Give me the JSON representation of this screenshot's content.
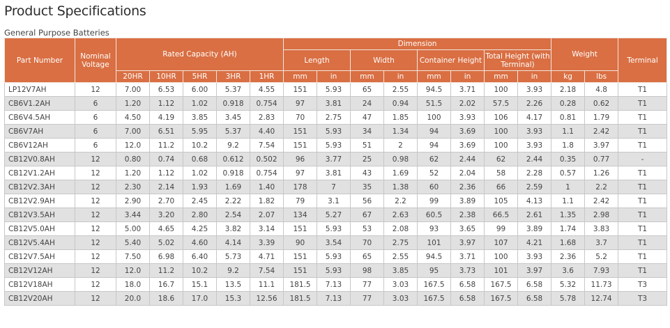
{
  "title": "Product Specifications",
  "subtitle": "General Purpose Batteries",
  "headers": {
    "part_number": "Part Number",
    "nominal_voltage": "Nominal Voltage",
    "rated_capacity": "Rated Capacity (AH)",
    "dimension": "Dimension",
    "weight": "Weight",
    "terminal": "Terminal",
    "length": "Length",
    "width": "Width",
    "container_height": "Container Height",
    "total_height": "Total Height (with Terminal)",
    "rates": [
      "20HR",
      "10HR",
      "5HR",
      "3HR",
      "1HR"
    ],
    "units": [
      "mm",
      "in",
      "mm",
      "in",
      "mm",
      "in",
      "mm",
      "in",
      "kg",
      "lbs"
    ]
  },
  "rows": [
    [
      "LP12V7AH",
      "12",
      "7.00",
      "6.53",
      "6.00",
      "5.37",
      "4.55",
      "151",
      "5.93",
      "65",
      "2.55",
      "94.5",
      "3.71",
      "100",
      "3.93",
      "2.18",
      "4.8",
      "T1"
    ],
    [
      "CB6V1.2AH",
      "6",
      "1.20",
      "1.12",
      "1.02",
      "0.918",
      "0.754",
      "97",
      "3.81",
      "24",
      "0.94",
      "51.5",
      "2.02",
      "57.5",
      "2.26",
      "0.28",
      "0.62",
      "T1"
    ],
    [
      "CB6V4.5AH",
      "6",
      "4.50",
      "4.19",
      "3.85",
      "3.45",
      "2.83",
      "70",
      "2.75",
      "47",
      "1.85",
      "100",
      "3.93",
      "106",
      "4.17",
      "0.81",
      "1.79",
      "T1"
    ],
    [
      "CB6V7AH",
      "6",
      "7.00",
      "6.51",
      "5.95",
      "5.37",
      "4.40",
      "151",
      "5.93",
      "34",
      "1.34",
      "94",
      "3.69",
      "100",
      "3.93",
      "1.1",
      "2.42",
      "T1"
    ],
    [
      "CB6V12AH",
      "6",
      "12.0",
      "11.2",
      "10.2",
      "9.2",
      "7.54",
      "151",
      "5.93",
      "51",
      "2",
      "94",
      "3.69",
      "100",
      "3.93",
      "1.8",
      "3.97",
      "T1"
    ],
    [
      "CB12V0.8AH",
      "12",
      "0.80",
      "0.74",
      "0.68",
      "0.612",
      "0.502",
      "96",
      "3.77",
      "25",
      "0.98",
      "62",
      "2.44",
      "62",
      "2.44",
      "0.35",
      "0.77",
      "-"
    ],
    [
      "CB12V1.2AH",
      "12",
      "1.20",
      "1.12",
      "1.02",
      "0.918",
      "0.754",
      "97",
      "3.81",
      "43",
      "1.69",
      "52",
      "2.04",
      "58",
      "2.28",
      "0.57",
      "1.26",
      "T1"
    ],
    [
      "CB12V2.3AH",
      "12",
      "2.30",
      "2.14",
      "1.93",
      "1.69",
      "1.40",
      "178",
      "7",
      "35",
      "1.38",
      "60",
      "2.36",
      "66",
      "2.59",
      "1",
      "2.2",
      "T1"
    ],
    [
      "CB12V2.9AH",
      "12",
      "2.90",
      "2.70",
      "2.45",
      "2.22",
      "1.82",
      "79",
      "3.1",
      "56",
      "2.2",
      "99",
      "3.89",
      "105",
      "4.13",
      "1.1",
      "2.42",
      "T1"
    ],
    [
      "CB12V3.5AH",
      "12",
      "3.44",
      "3.20",
      "2.80",
      "2.54",
      "2.07",
      "134",
      "5.27",
      "67",
      "2.63",
      "60.5",
      "2.38",
      "66.5",
      "2.61",
      "1.35",
      "2.98",
      "T1"
    ],
    [
      "CB12V5.0AH",
      "12",
      "5.00",
      "4.65",
      "4.25",
      "3.82",
      "3.14",
      "151",
      "5.93",
      "53",
      "2.08",
      "93",
      "3.65",
      "99",
      "3.89",
      "1.74",
      "3.83",
      "T1"
    ],
    [
      "CB12V5.4AH",
      "12",
      "5.40",
      "5.02",
      "4.60",
      "4.14",
      "3.39",
      "90",
      "3.54",
      "70",
      "2.75",
      "101",
      "3.97",
      "107",
      "4.21",
      "1.68",
      "3.7",
      "T1"
    ],
    [
      "CB12V7.5AH",
      "12",
      "7.50",
      "6.98",
      "6.40",
      "5.73",
      "4.71",
      "151",
      "5.93",
      "65",
      "2.55",
      "94.5",
      "3.71",
      "100",
      "3.93",
      "2.36",
      "5.2",
      "T1"
    ],
    [
      "CB12V12AH",
      "12",
      "12.0",
      "11.2",
      "10.2",
      "9.2",
      "7.54",
      "151",
      "5.93",
      "98",
      "3.85",
      "95",
      "3.73",
      "101",
      "3.97",
      "3.6",
      "7.93",
      "T1"
    ],
    [
      "CB12V18AH",
      "12",
      "18.0",
      "16.7",
      "15.1",
      "13.5",
      "11.1",
      "181.5",
      "7.13",
      "77",
      "3.03",
      "167.5",
      "6.58",
      "167.5",
      "6.58",
      "5.32",
      "11.73",
      "T3"
    ],
    [
      "CB12V20AH",
      "12",
      "20.0",
      "18.6",
      "17.0",
      "15.3",
      "12.56",
      "181.5",
      "7.13",
      "77",
      "3.03",
      "167.5",
      "6.58",
      "167.5",
      "6.58",
      "5.78",
      "12.74",
      "T3"
    ]
  ],
  "colors": {
    "header_bg": "#d96f43",
    "header_text": "#ffffff",
    "row_alt_bg": "#e1e1e1"
  }
}
